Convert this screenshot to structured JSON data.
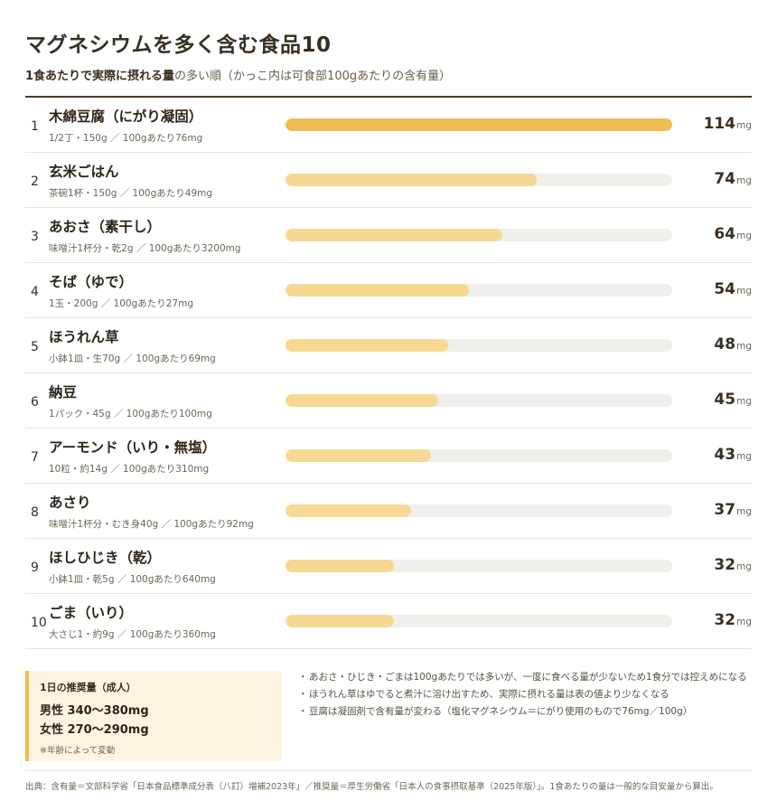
{
  "header": {
    "title": "マグネシウムを多く含む食品10",
    "subtitle_bold": "1食あたりで実際に摂れる量",
    "subtitle_rest": "の多い順（かっこ内は可食部100gあたりの含有量）"
  },
  "chart_data": {
    "type": "bar",
    "orientation": "horizontal",
    "unit": "mg",
    "xlim": [
      0,
      114
    ],
    "rows": [
      {
        "rank": "1",
        "name": "木綿豆腐（にがり凝固）",
        "detail": "1/2丁・150g ／ 100gあたり76mg",
        "value": 114
      },
      {
        "rank": "2",
        "name": "玄米ごはん",
        "detail": "茶碗1杯・150g ／ 100gあたり49mg",
        "value": 74
      },
      {
        "rank": "3",
        "name": "あおさ（素干し）",
        "detail": "味噌汁1杯分・乾2g ／ 100gあたり3200mg",
        "value": 64
      },
      {
        "rank": "4",
        "name": "そば（ゆで）",
        "detail": "1玉・200g ／ 100gあたり27mg",
        "value": 54
      },
      {
        "rank": "5",
        "name": "ほうれん草",
        "detail": "小鉢1皿・生70g ／ 100gあたり69mg",
        "value": 48
      },
      {
        "rank": "6",
        "name": "納豆",
        "detail": "1パック・45g ／ 100gあたり100mg",
        "value": 45
      },
      {
        "rank": "7",
        "name": "アーモンド（いり・無塩）",
        "detail": "10粒・約14g ／ 100gあたり310mg",
        "value": 43
      },
      {
        "rank": "8",
        "name": "あさり",
        "detail": "味噌汁1杯分・むき身40g ／ 100gあたり92mg",
        "value": 37
      },
      {
        "rank": "9",
        "name": "ほしひじき（乾）",
        "detail": "小鉢1皿・乾5g ／ 100gあたり640mg",
        "value": 32
      },
      {
        "rank": "10",
        "name": "ごま（いり）",
        "detail": "大さじ1・約9g ／ 100gあたり360mg",
        "value": 32
      }
    ],
    "colors": {
      "top": "#efbc55",
      "others": "#f7d994",
      "track": "#f1efeb"
    }
  },
  "recommendation": {
    "heading": "1日の推奨量（成人）",
    "male": "男性 340〜380mg",
    "female": "女性 270〜290mg",
    "note": "※年齢によって変動"
  },
  "notes": [
    "あおさ・ひじき・ごまは100gあたりでは多いが、一度に食べる量が少ないため1食分では控えめになる",
    "ほうれん草はゆでると煮汁に溶け出すため、実際に摂れる量は表の値より少なくなる",
    "豆腐は凝固剤で含有量が変わる（塩化マグネシウム＝にがり使用のもので76mg／100g）"
  ],
  "source": "出典：含有量＝文部科学省「日本食品標準成分表（八訂）増補2023年」／推奨量＝厚生労働省「日本人の食事摂取基準（2025年版）」。1食あたりの量は一般的な目安量から算出。"
}
